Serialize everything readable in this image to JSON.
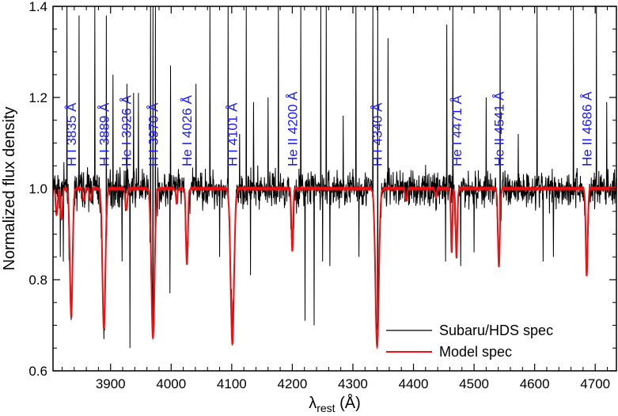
{
  "chart_data": {
    "type": "line",
    "xlabel_main": "λ",
    "xlabel_sub": "rest",
    "xlabel_unit": " (Å)",
    "ylabel": "Normalized flux density",
    "xlim": [
      3805,
      4735
    ],
    "ylim": [
      0.6,
      1.4
    ],
    "xticks": [
      3900,
      4000,
      4100,
      4200,
      4300,
      4400,
      4500,
      4600,
      4700
    ],
    "xtick_labels": [
      "3900",
      "4000",
      "4100",
      "4200",
      "4300",
      "4400",
      "4500",
      "4600",
      "4700"
    ],
    "yticks": [
      0.6,
      0.8,
      1.0,
      1.2,
      1.4
    ],
    "ytick_labels": [
      "0.6",
      "0.8",
      "1.0",
      "1.2",
      "1.4"
    ],
    "line_label_color": "#1a1aff",
    "line_labels": [
      {
        "text": "H I 3835 Å",
        "x": 3835
      },
      {
        "text": "H I 3889 Å",
        "x": 3889
      },
      {
        "text": "He I 3926 Å",
        "x": 3926
      },
      {
        "text": "H I 3970 Å",
        "x": 3970
      },
      {
        "text": "He I 4026 Å",
        "x": 4026
      },
      {
        "text": "H I 4101 Å",
        "x": 4101
      },
      {
        "text": "He II 4200 Å",
        "x": 4200
      },
      {
        "text": "H I 4340 Å",
        "x": 4340
      },
      {
        "text": "He I 4471 Å",
        "x": 4471
      },
      {
        "text": "He II 4541 Å",
        "x": 4541
      },
      {
        "text": "He II 4686 Å",
        "x": 4686
      }
    ],
    "series": [
      {
        "name": "Subaru/HDS spec",
        "color": "#000000",
        "continuum": 1.0,
        "absorption": [
          {
            "x": 3835,
            "depth": 0.26,
            "width": 2.5
          },
          {
            "x": 3889,
            "depth": 0.3,
            "width": 2.8
          },
          {
            "x": 3970,
            "depth": 0.32,
            "width": 3.0
          },
          {
            "x": 4026,
            "depth": 0.14,
            "width": 2.0
          },
          {
            "x": 4101,
            "depth": 0.3,
            "width": 3.0
          },
          {
            "x": 4200,
            "depth": 0.12,
            "width": 2.0
          },
          {
            "x": 4340,
            "depth": 0.33,
            "width": 3.0
          },
          {
            "x": 4471,
            "depth": 0.13,
            "width": 2.0
          },
          {
            "x": 4541,
            "depth": 0.15,
            "width": 2.0
          },
          {
            "x": 4686,
            "depth": 0.18,
            "width": 2.0
          }
        ],
        "spikes": [
          {
            "x": 3828,
            "y": 1.4
          },
          {
            "x": 3848,
            "y": 1.38
          },
          {
            "x": 3874,
            "y": 1.4
          },
          {
            "x": 3893,
            "y": 1.38
          },
          {
            "x": 3904,
            "y": 1.25
          },
          {
            "x": 3927,
            "y": 1.23
          },
          {
            "x": 3938,
            "y": 1.21
          },
          {
            "x": 3946,
            "y": 1.21
          },
          {
            "x": 3966,
            "y": 1.4
          },
          {
            "x": 3970,
            "y": 1.4
          },
          {
            "x": 3974,
            "y": 1.4
          },
          {
            "x": 3999,
            "y": 1.27
          },
          {
            "x": 4041,
            "y": 1.23
          },
          {
            "x": 4064,
            "y": 1.4
          },
          {
            "x": 4094,
            "y": 1.4
          },
          {
            "x": 4113,
            "y": 1.12
          },
          {
            "x": 4124,
            "y": 1.4
          },
          {
            "x": 4136,
            "y": 1.19
          },
          {
            "x": 4160,
            "y": 1.2
          },
          {
            "x": 4177,
            "y": 1.4
          },
          {
            "x": 4214,
            "y": 1.4
          },
          {
            "x": 4247,
            "y": 1.4
          },
          {
            "x": 4256,
            "y": 1.4
          },
          {
            "x": 4284,
            "y": 1.16
          },
          {
            "x": 4305,
            "y": 1.4
          },
          {
            "x": 4333,
            "y": 1.4
          },
          {
            "x": 4341,
            "y": 1.4
          },
          {
            "x": 4358,
            "y": 1.33
          },
          {
            "x": 4455,
            "y": 1.36
          },
          {
            "x": 4465,
            "y": 1.4
          },
          {
            "x": 4520,
            "y": 1.2
          },
          {
            "x": 4543,
            "y": 1.4
          },
          {
            "x": 4573,
            "y": 1.12
          },
          {
            "x": 4604,
            "y": 1.4
          },
          {
            "x": 4664,
            "y": 1.4
          },
          {
            "x": 4702,
            "y": 1.4
          },
          {
            "x": 4719,
            "y": 1.19
          },
          {
            "x": 3817,
            "y": 0.85
          },
          {
            "x": 3822,
            "y": 0.84
          },
          {
            "x": 3919,
            "y": 0.84
          },
          {
            "x": 3932,
            "y": 0.65
          },
          {
            "x": 3998,
            "y": 0.77
          },
          {
            "x": 4080,
            "y": 0.85
          },
          {
            "x": 4131,
            "y": 0.81
          },
          {
            "x": 4221,
            "y": 0.71
          },
          {
            "x": 4236,
            "y": 0.7
          },
          {
            "x": 4250,
            "y": 0.84
          },
          {
            "x": 4262,
            "y": 0.83
          },
          {
            "x": 4310,
            "y": 0.85
          },
          {
            "x": 4453,
            "y": 0.84
          },
          {
            "x": 4478,
            "y": 0.83
          },
          {
            "x": 4500,
            "y": 0.86
          },
          {
            "x": 4614,
            "y": 0.84
          },
          {
            "x": 4631,
            "y": 0.85
          }
        ]
      },
      {
        "name": "Model spec",
        "color": "#ee1111",
        "continuum": 1.0,
        "absorption": [
          {
            "x": 3811,
            "depth": 0.06,
            "width": 1.5
          },
          {
            "x": 3819,
            "depth": 0.07,
            "width": 1.5
          },
          {
            "x": 3835,
            "depth": 0.28,
            "width": 2.2
          },
          {
            "x": 3856,
            "depth": 0.03,
            "width": 1.5
          },
          {
            "x": 3867,
            "depth": 0.03,
            "width": 1.5
          },
          {
            "x": 3889,
            "depth": 0.31,
            "width": 2.4
          },
          {
            "x": 3926,
            "depth": 0.05,
            "width": 1.5
          },
          {
            "x": 3970,
            "depth": 0.33,
            "width": 2.6
          },
          {
            "x": 4009,
            "depth": 0.03,
            "width": 1.3
          },
          {
            "x": 4026,
            "depth": 0.17,
            "width": 1.6
          },
          {
            "x": 4101,
            "depth": 0.34,
            "width": 2.8
          },
          {
            "x": 4200,
            "depth": 0.14,
            "width": 1.4
          },
          {
            "x": 4340,
            "depth": 0.35,
            "width": 2.8
          },
          {
            "x": 4388,
            "depth": 0.03,
            "width": 1.3
          },
          {
            "x": 4437,
            "depth": 0.02,
            "width": 1.2
          },
          {
            "x": 4463,
            "depth": 0.14,
            "width": 1.2
          },
          {
            "x": 4471,
            "depth": 0.15,
            "width": 1.4
          },
          {
            "x": 4541,
            "depth": 0.17,
            "width": 1.6
          },
          {
            "x": 4686,
            "depth": 0.19,
            "width": 1.6
          }
        ]
      }
    ],
    "legend_position": "bottom-right"
  }
}
